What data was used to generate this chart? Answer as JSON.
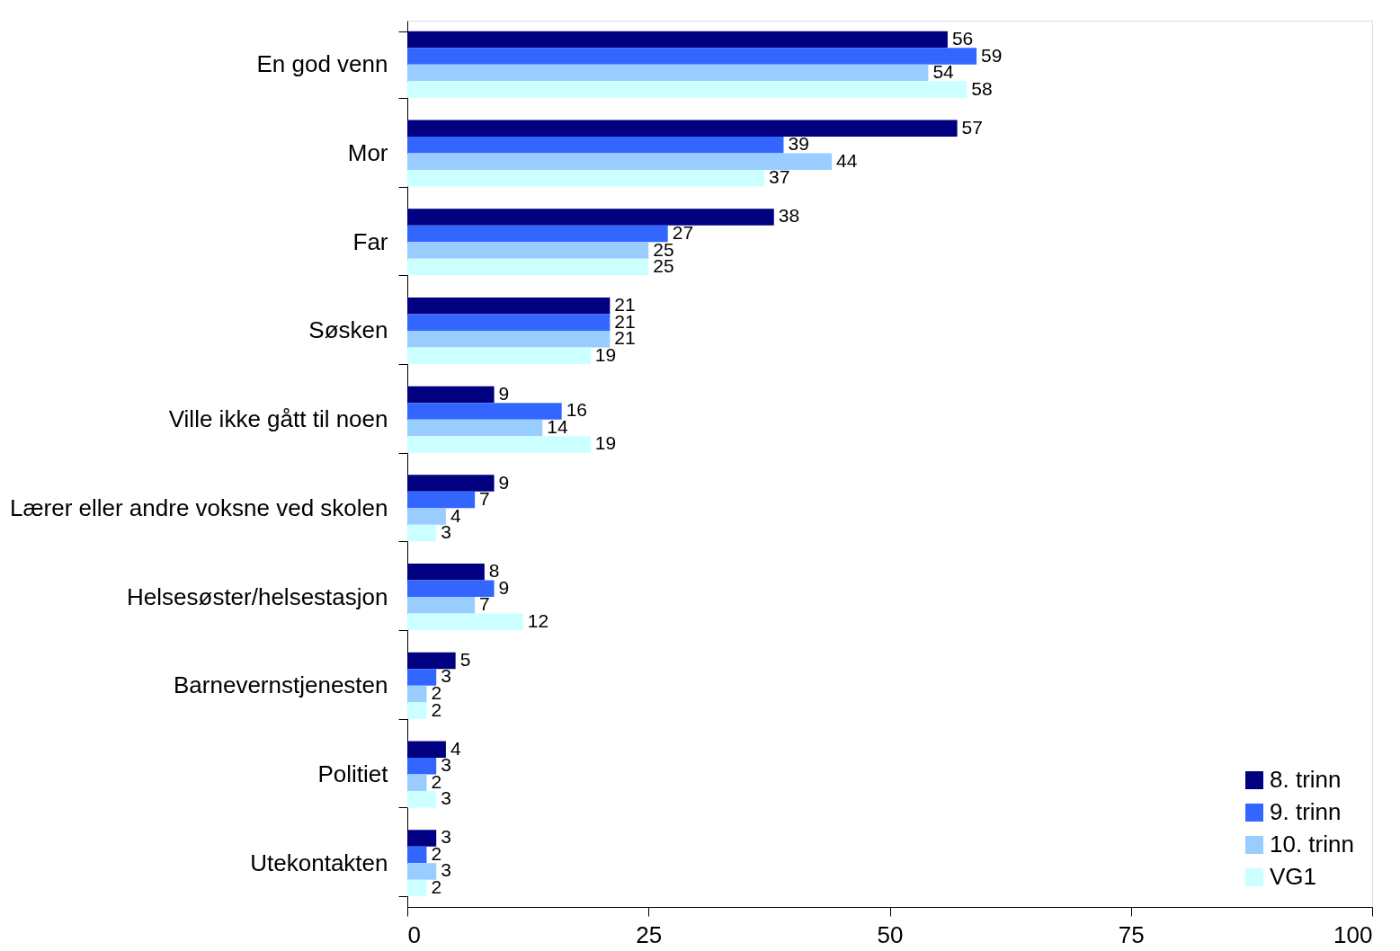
{
  "chart_data": {
    "type": "bar",
    "orientation": "horizontal",
    "categories": [
      "En god venn",
      "Mor",
      "Far",
      "Søsken",
      "Ville ikke gått til noen",
      "Lærer eller andre voksne ved skolen",
      "Helsesøster/helsestasjon",
      "Barnevernstjenesten",
      "Politiet",
      "Utekontakten"
    ],
    "series": [
      {
        "name": "8. trinn",
        "color": "#000080",
        "values": [
          56,
          57,
          38,
          21,
          9,
          9,
          8,
          5,
          4,
          3
        ]
      },
      {
        "name": "9. trinn",
        "color": "#3366ff",
        "values": [
          59,
          39,
          27,
          21,
          16,
          7,
          9,
          3,
          3,
          2
        ]
      },
      {
        "name": "10. trinn",
        "color": "#99ccff",
        "values": [
          54,
          44,
          25,
          21,
          14,
          4,
          7,
          2,
          2,
          3
        ]
      },
      {
        "name": "VG1",
        "color": "#ccffff",
        "values": [
          58,
          37,
          25,
          19,
          19,
          3,
          12,
          2,
          3,
          2
        ]
      }
    ],
    "xlim": [
      0,
      100
    ],
    "xticks": [
      0,
      25,
      50,
      75,
      100
    ],
    "grid": false,
    "legend": "bottom right",
    "data_labels": true
  }
}
